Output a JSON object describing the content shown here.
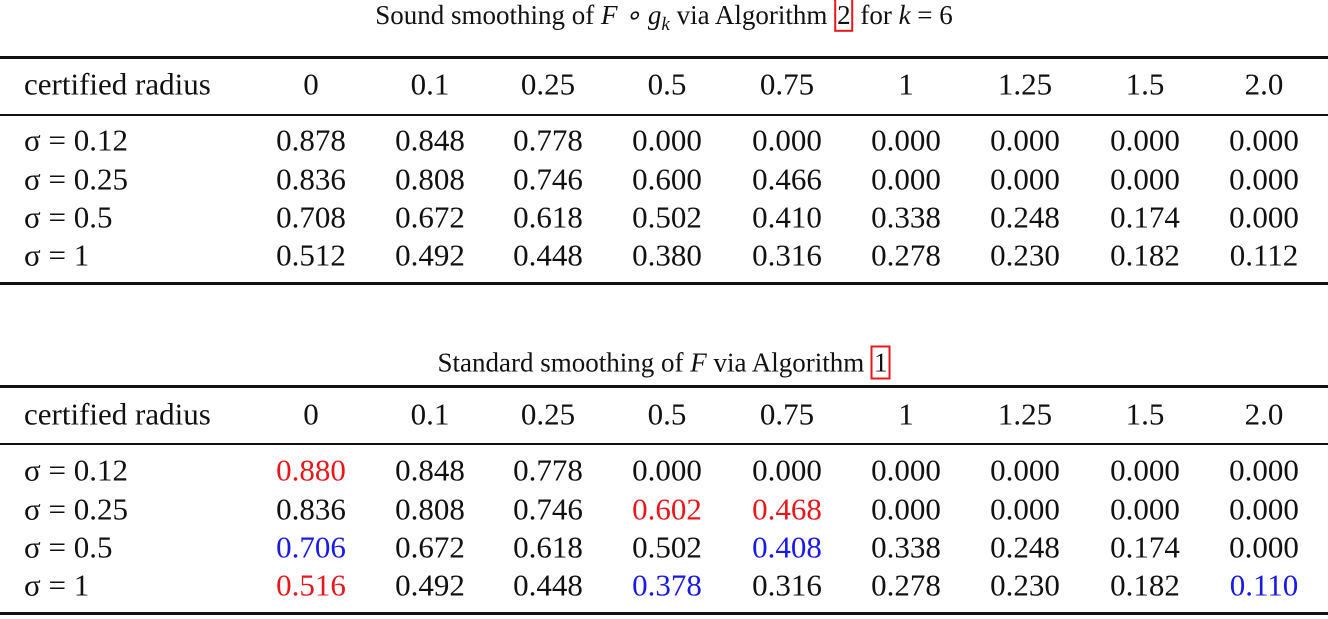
{
  "tables": [
    {
      "title": {
        "lead": "Sound smoothing of ",
        "math": "F ∘ g",
        "sub": "k",
        "mid": " via Algorithm ",
        "ref": "2",
        "tail": " for ",
        "var": "k",
        "end": " = 6"
      },
      "header": [
        "certified radius",
        "0",
        "0.1",
        "0.25",
        "0.5",
        "0.75",
        "1",
        "1.25",
        "1.5",
        "2.0"
      ],
      "rows": [
        [
          "σ = 0.12",
          "0.878",
          "0.848",
          "0.778",
          "0.000",
          "0.000",
          "0.000",
          "0.000",
          "0.000",
          "0.000"
        ],
        [
          "σ = 0.25",
          "0.836",
          "0.808",
          "0.746",
          "0.600",
          "0.466",
          "0.000",
          "0.000",
          "0.000",
          "0.000"
        ],
        [
          "σ = 0.5",
          "0.708",
          "0.672",
          "0.618",
          "0.502",
          "0.410",
          "0.338",
          "0.248",
          "0.174",
          "0.000"
        ],
        [
          "σ = 1",
          "0.512",
          "0.492",
          "0.448",
          "0.380",
          "0.316",
          "0.278",
          "0.230",
          "0.182",
          "0.112"
        ]
      ],
      "cell_colors": [
        [
          "#111",
          "#111",
          "#111",
          "#111",
          "#111",
          "#111",
          "#111",
          "#111",
          "#111",
          "#111"
        ],
        [
          "#111",
          "#111",
          "#111",
          "#111",
          "#111",
          "#111",
          "#111",
          "#111",
          "#111",
          "#111"
        ],
        [
          "#111",
          "#111",
          "#111",
          "#111",
          "#111",
          "#111",
          "#111",
          "#111",
          "#111",
          "#111"
        ],
        [
          "#111",
          "#111",
          "#111",
          "#111",
          "#111",
          "#111",
          "#111",
          "#111",
          "#111",
          "#111"
        ]
      ]
    },
    {
      "title": {
        "lead": "Standard smoothing of ",
        "math": "F",
        "mid": " via Algorithm ",
        "ref": "1"
      },
      "header": [
        "certified radius",
        "0",
        "0.1",
        "0.25",
        "0.5",
        "0.75",
        "1",
        "1.25",
        "1.5",
        "2.0"
      ],
      "rows": [
        [
          "σ = 0.12",
          "0.880",
          "0.848",
          "0.778",
          "0.000",
          "0.000",
          "0.000",
          "0.000",
          "0.000",
          "0.000"
        ],
        [
          "σ = 0.25",
          "0.836",
          "0.808",
          "0.746",
          "0.602",
          "0.468",
          "0.000",
          "0.000",
          "0.000",
          "0.000"
        ],
        [
          "σ = 0.5",
          "0.706",
          "0.672",
          "0.618",
          "0.502",
          "0.408",
          "0.338",
          "0.248",
          "0.174",
          "0.000"
        ],
        [
          "σ = 1",
          "0.516",
          "0.492",
          "0.448",
          "0.378",
          "0.316",
          "0.278",
          "0.230",
          "0.182",
          "0.110"
        ]
      ],
      "cell_colors": [
        [
          "#111",
          "#e8171b",
          "#111",
          "#111",
          "#111",
          "#111",
          "#111",
          "#111",
          "#111",
          "#111"
        ],
        [
          "#111",
          "#111",
          "#111",
          "#111",
          "#e8171b",
          "#e8171b",
          "#111",
          "#111",
          "#111",
          "#111"
        ],
        [
          "#111",
          "#1a1ae6",
          "#111",
          "#111",
          "#111",
          "#1a1ae6",
          "#111",
          "#111",
          "#111",
          "#111"
        ],
        [
          "#111",
          "#e8171b",
          "#111",
          "#111",
          "#1a1ae6",
          "#111",
          "#111",
          "#111",
          "#111",
          "#1a1ae6"
        ]
      ]
    }
  ]
}
